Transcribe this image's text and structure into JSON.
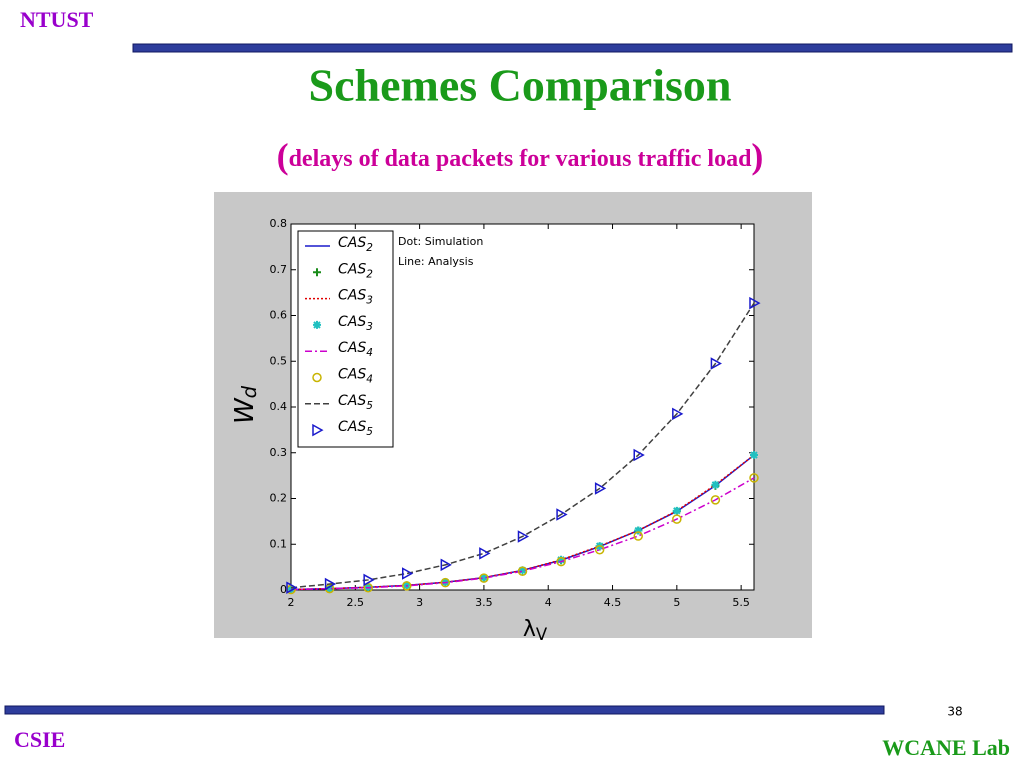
{
  "header": {
    "org": "NTUST",
    "title": "Schemes Comparison",
    "subtitle": "(delays of data packets for various traffic load)"
  },
  "footer": {
    "page": "38",
    "left": "CSIE",
    "right": "WCANE Lab"
  },
  "chart_data": {
    "type": "line",
    "annotations": [
      "Dot: Simulation",
      "Line: Analysis"
    ],
    "xlabel": "λV",
    "ylabel": "Wd",
    "x": [
      2,
      2.3,
      2.6,
      2.9,
      3.2,
      3.5,
      3.8,
      4.1,
      4.4,
      4.7,
      5.0,
      5.3,
      5.6
    ],
    "xlim": [
      2,
      5.6
    ],
    "xticks": [
      2,
      2.5,
      3,
      3.5,
      4,
      4.5,
      5,
      5.5
    ],
    "ylim": [
      0,
      0.8
    ],
    "yticks": [
      0,
      0.1,
      0.2,
      0.3,
      0.4,
      0.5,
      0.6,
      0.7,
      0.8
    ],
    "series": [
      {
        "name": "CAS2",
        "color": "#1a1acc",
        "style": "solid",
        "values": [
          0.001,
          0.003,
          0.006,
          0.01,
          0.017,
          0.027,
          0.043,
          0.065,
          0.095,
          0.13,
          0.172,
          0.228,
          0.295
        ]
      },
      {
        "name": "CAS2",
        "color": "#1a8c1a",
        "marker": "plus",
        "values": [
          0.001,
          0.003,
          0.006,
          0.01,
          0.017,
          0.027,
          0.043,
          0.065,
          0.095,
          0.13,
          0.172,
          0.228,
          0.295
        ]
      },
      {
        "name": "CAS3",
        "color": "#e00000",
        "style": "dotted",
        "values": [
          0.001,
          0.003,
          0.006,
          0.01,
          0.017,
          0.027,
          0.043,
          0.066,
          0.096,
          0.13,
          0.173,
          0.23,
          0.295
        ]
      },
      {
        "name": "CAS3",
        "color": "#20c0c0",
        "marker": "star",
        "values": [
          0.001,
          0.003,
          0.006,
          0.01,
          0.017,
          0.027,
          0.043,
          0.066,
          0.096,
          0.13,
          0.173,
          0.23,
          0.295
        ]
      },
      {
        "name": "CAS4",
        "color": "#cc00cc",
        "style": "dashdot",
        "values": [
          0.001,
          0.003,
          0.005,
          0.009,
          0.016,
          0.026,
          0.041,
          0.062,
          0.088,
          0.118,
          0.155,
          0.197,
          0.245
        ]
      },
      {
        "name": "CAS4",
        "color": "#c8b400",
        "marker": "circle",
        "values": [
          0.001,
          0.003,
          0.005,
          0.009,
          0.016,
          0.026,
          0.041,
          0.062,
          0.088,
          0.118,
          0.155,
          0.197,
          0.245
        ]
      },
      {
        "name": "CAS5",
        "color": "#404040",
        "style": "dashed",
        "values": [
          0.005,
          0.013,
          0.022,
          0.036,
          0.055,
          0.08,
          0.117,
          0.165,
          0.222,
          0.295,
          0.385,
          0.495,
          0.627
        ]
      },
      {
        "name": "CAS5",
        "color": "#1a1acc",
        "marker": "triangle",
        "values": [
          0.005,
          0.013,
          0.022,
          0.036,
          0.055,
          0.08,
          0.117,
          0.165,
          0.222,
          0.295,
          0.385,
          0.495,
          0.627
        ]
      }
    ]
  }
}
